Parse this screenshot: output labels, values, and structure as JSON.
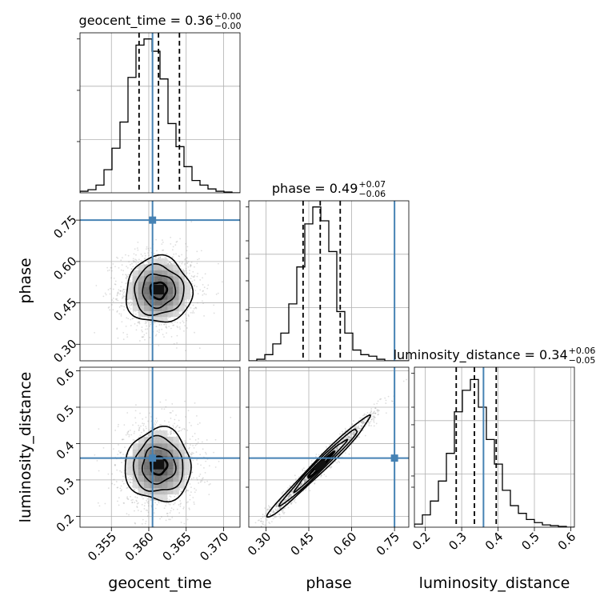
{
  "chart_data": {
    "type": "corner",
    "parameters": [
      "geocent_time",
      "phase",
      "luminosity_distance"
    ],
    "truths": {
      "geocent_time": 0.3605,
      "phase": 0.75,
      "luminosity_distance": 0.36
    },
    "colors": {
      "truth": "#4682b4",
      "hist": "#000000",
      "quantile": "#000000",
      "grid": "#b0b0b0",
      "scatter": "#888888"
    },
    "grid": true,
    "diagonals": [
      {
        "param": "geocent_time",
        "title": "geocent_time = 0.36",
        "title_sup": "+0.00",
        "title_sub": "−0.00",
        "xlim": [
          0.3508,
          0.3722
        ],
        "ylim": [
          0,
          1.0
        ],
        "quantiles": [
          0.3587,
          0.3613,
          0.3641
        ],
        "bin_edges": [
          0.3508,
          0.35187,
          0.35294,
          0.35401,
          0.35508,
          0.35615,
          0.35722,
          0.35829,
          0.35936,
          0.36043,
          0.3615,
          0.36257,
          0.36364,
          0.36471,
          0.36578,
          0.36685,
          0.36792,
          0.36899,
          0.37006,
          0.37113,
          0.3722
        ],
        "counts": [
          0.01,
          0.02,
          0.05,
          0.15,
          0.29,
          0.46,
          0.75,
          0.96,
          1.0,
          0.92,
          0.74,
          0.45,
          0.3,
          0.17,
          0.08,
          0.05,
          0.025,
          0.01,
          0.005,
          0.0
        ]
      },
      {
        "param": "phase",
        "title": "phase = 0.49",
        "title_sup": "+0.07",
        "title_sub": "−0.06",
        "xlim": [
          0.24,
          0.8
        ],
        "ylim": [
          0,
          1.0
        ],
        "quantiles": [
          0.43,
          0.49,
          0.56
        ],
        "bin_edges": [
          0.24,
          0.268,
          0.296,
          0.324,
          0.352,
          0.38,
          0.408,
          0.436,
          0.464,
          0.492,
          0.52,
          0.548,
          0.576,
          0.604,
          0.632,
          0.66,
          0.688,
          0.716,
          0.744,
          0.772,
          0.8
        ],
        "counts": [
          0.0,
          0.01,
          0.04,
          0.11,
          0.18,
          0.37,
          0.61,
          0.89,
          1.0,
          0.91,
          0.71,
          0.32,
          0.18,
          0.07,
          0.04,
          0.03,
          0.01,
          0.0,
          0.0,
          0.0
        ]
      },
      {
        "param": "luminosity_distance",
        "title": "luminosity_distance = 0.34",
        "title_sup": "+0.06",
        "title_sub": "−0.05",
        "xlim": [
          0.17,
          0.61
        ],
        "ylim": [
          0,
          1.0
        ],
        "quantiles": [
          0.285,
          0.335,
          0.395
        ],
        "bin_edges": [
          0.17,
          0.192,
          0.214,
          0.236,
          0.258,
          0.28,
          0.302,
          0.324,
          0.346,
          0.368,
          0.39,
          0.412,
          0.434,
          0.456,
          0.478,
          0.5,
          0.522,
          0.544,
          0.566,
          0.588,
          0.61
        ],
        "counts": [
          0.02,
          0.08,
          0.17,
          0.3,
          0.48,
          0.75,
          0.89,
          0.96,
          0.78,
          0.57,
          0.41,
          0.24,
          0.14,
          0.09,
          0.05,
          0.03,
          0.015,
          0.01,
          0.005,
          0.0
        ]
      }
    ],
    "panels": [
      {
        "x": "geocent_time",
        "y": "phase",
        "xlim": [
          0.3508,
          0.3722
        ],
        "ylim": [
          0.24,
          0.82
        ],
        "center": [
          0.3613,
          0.495
        ],
        "sd": [
          0.0022,
          0.06
        ],
        "rho": 0.0,
        "spread": 2.2,
        "truth": [
          0.3605,
          0.75
        ]
      },
      {
        "x": "geocent_time",
        "y": "luminosity_distance",
        "xlim": [
          0.3508,
          0.3722
        ],
        "ylim": [
          0.17,
          0.61
        ],
        "center": [
          0.3613,
          0.34
        ],
        "sd": [
          0.0022,
          0.05
        ],
        "rho": 0.0,
        "spread": 2.2,
        "truth": [
          0.3605,
          0.36
        ]
      },
      {
        "x": "phase",
        "y": "luminosity_distance",
        "xlim": [
          0.24,
          0.8
        ],
        "ylim": [
          0.17,
          0.61
        ],
        "center": [
          0.49,
          0.34
        ],
        "sd": [
          0.09,
          0.07
        ],
        "rho": 0.985,
        "spread": 2.0,
        "truth": [
          0.75,
          0.36
        ]
      }
    ],
    "contour_levels_sigma": [
      0.5,
      1.0,
      1.5,
      2.0
    ],
    "x_ticks": {
      "geocent_time": [
        0.355,
        0.36,
        0.365,
        0.37
      ],
      "phase": [
        0.3,
        0.45,
        0.6,
        0.75
      ],
      "luminosity_distance": [
        0.2,
        0.3,
        0.4,
        0.5,
        0.6
      ]
    },
    "x_tick_labels": {
      "geocent_time": [
        "0.355",
        "0.360",
        "0.365",
        "0.370"
      ],
      "phase": [
        "0.30",
        "0.45",
        "0.60",
        "0.75"
      ],
      "luminosity_distance": [
        "0.2",
        "0.3",
        "0.4",
        "0.5",
        "0.6"
      ]
    },
    "y_ticks": {
      "phase": [
        0.3,
        0.45,
        0.6,
        0.75
      ],
      "luminosity_distance": [
        0.2,
        0.3,
        0.4,
        0.5,
        0.6
      ]
    },
    "y_tick_labels": {
      "phase": [
        "0.30",
        "0.45",
        "0.60",
        "0.75"
      ],
      "luminosity_distance": [
        "0.2",
        "0.3",
        "0.4",
        "0.5",
        "0.6"
      ]
    },
    "axis_labels": {
      "xlabels": [
        "geocent_time",
        "phase",
        "luminosity_distance"
      ],
      "ylabels": [
        "phase",
        "luminosity_distance"
      ]
    }
  }
}
